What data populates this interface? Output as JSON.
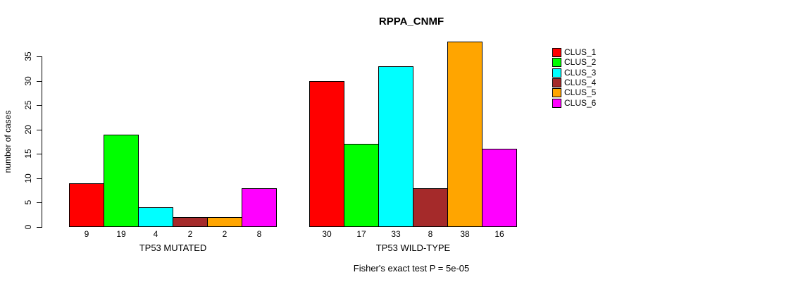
{
  "chart_data": {
    "type": "bar",
    "title": "RPPA_CNMF",
    "ylabel": "number of cases",
    "xlabel": "",
    "ylim": [
      0,
      35
    ],
    "yticks": [
      0,
      5,
      10,
      15,
      20,
      25,
      30,
      35
    ],
    "grid": false,
    "legend_position": "right",
    "categories": [
      "TP53 MUTATED",
      "TP53 WILD-TYPE"
    ],
    "series": [
      {
        "name": "CLUS_1",
        "color": "#FF0000",
        "values": [
          9,
          30
        ]
      },
      {
        "name": "CLUS_2",
        "color": "#00FF00",
        "values": [
          19,
          17
        ]
      },
      {
        "name": "CLUS_3",
        "color": "#00FFFF",
        "values": [
          4,
          33
        ]
      },
      {
        "name": "CLUS_4",
        "color": "#A52A2A",
        "values": [
          2,
          8
        ]
      },
      {
        "name": "CLUS_5",
        "color": "#FFA500",
        "values": [
          2,
          38
        ]
      },
      {
        "name": "CLUS_6",
        "color": "#FF00FF",
        "values": [
          8,
          16
        ]
      }
    ],
    "bar_value_labels": [
      [
        9,
        19,
        4,
        2,
        2,
        8
      ],
      [
        30,
        17,
        33,
        8,
        38,
        16
      ]
    ],
    "annotation": "Fisher's exact test P = 5e-05"
  },
  "legend": {
    "items": [
      {
        "label": "CLUS_1",
        "color": "#FF0000"
      },
      {
        "label": "CLUS_2",
        "color": "#00FF00"
      },
      {
        "label": "CLUS_3",
        "color": "#00FFFF"
      },
      {
        "label": "CLUS_4",
        "color": "#A52A2A"
      },
      {
        "label": "CLUS_5",
        "color": "#FFA500"
      },
      {
        "label": "CLUS_6",
        "color": "#FF00FF"
      }
    ]
  }
}
